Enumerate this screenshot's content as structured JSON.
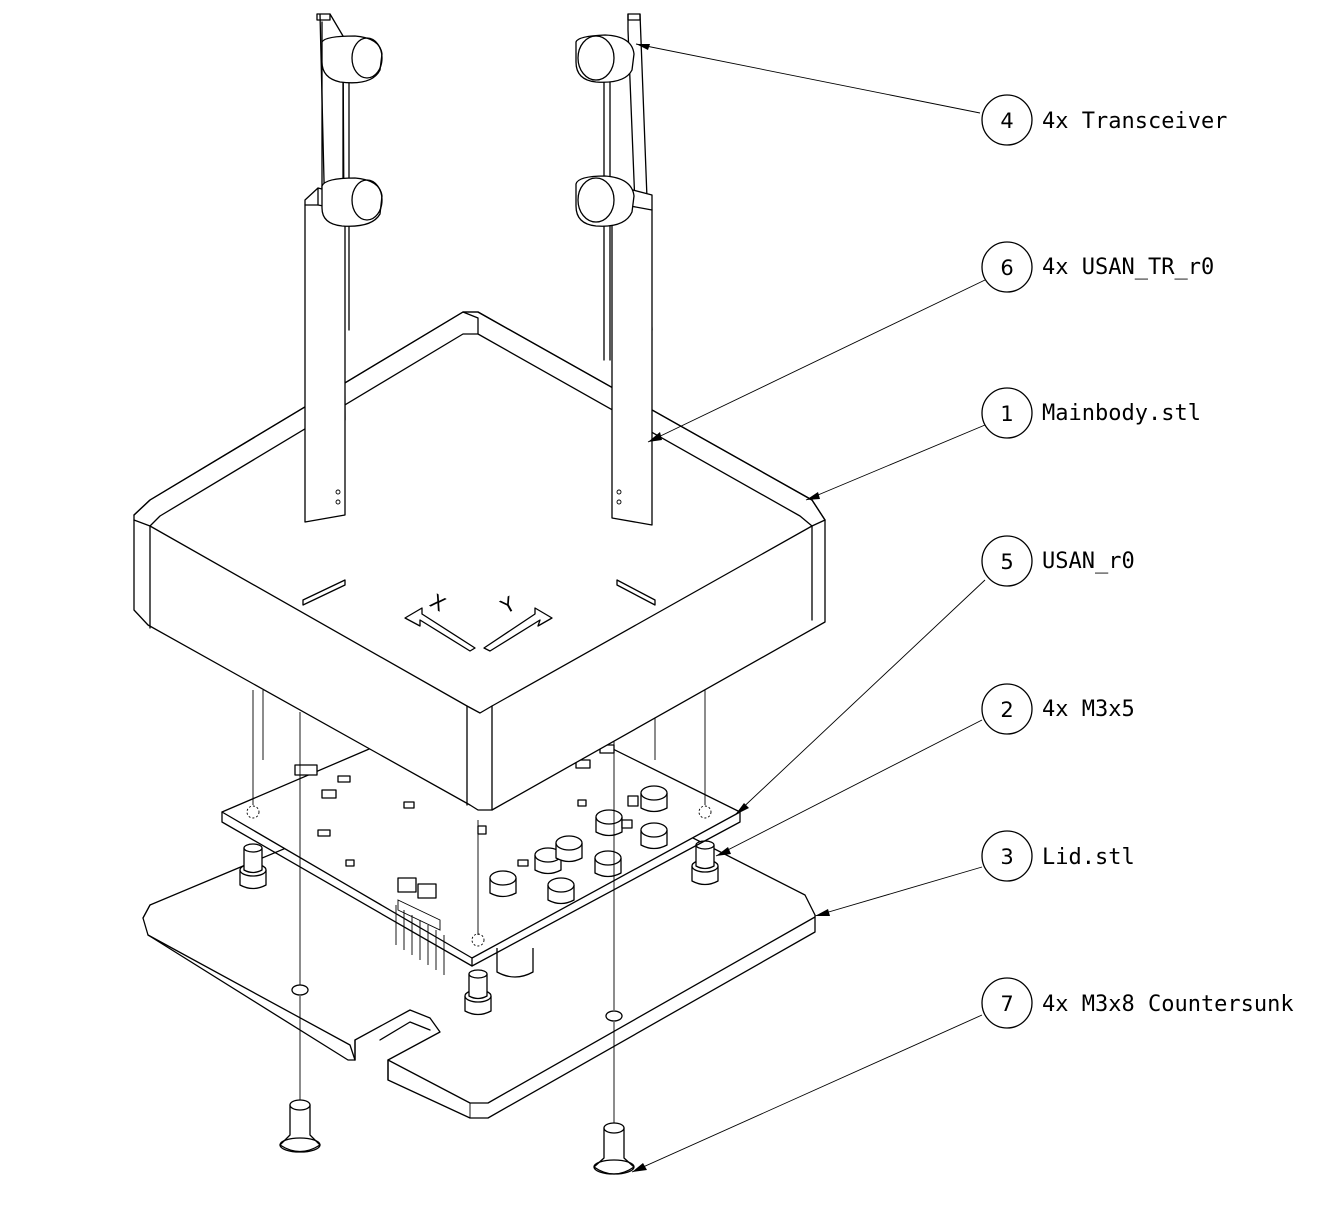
{
  "callouts": [
    {
      "number": "4",
      "label": "4x Transceiver"
    },
    {
      "number": "6",
      "label": "4x USAN_TR_r0"
    },
    {
      "number": "1",
      "label": "Mainbody.stl"
    },
    {
      "number": "5",
      "label": "USAN_r0"
    },
    {
      "number": "2",
      "label": "4x M3x5"
    },
    {
      "number": "3",
      "label": "Lid.stl"
    },
    {
      "number": "7",
      "label": "4x M3x8 Countersunk"
    }
  ],
  "axis_markings": {
    "x": "X",
    "y": "Y"
  },
  "colors": {
    "line": "#000000",
    "background": "#ffffff"
  }
}
